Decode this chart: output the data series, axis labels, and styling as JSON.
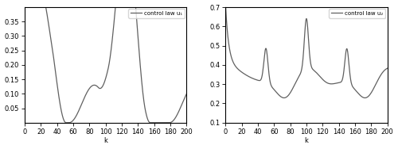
{
  "u1_ylim": [
    0,
    0.4
  ],
  "u2_ylim": [
    0.1,
    0.7
  ],
  "u1_yticks": [
    0.05,
    0.1,
    0.15,
    0.2,
    0.25,
    0.3,
    0.35
  ],
  "u2_yticks": [
    0.1,
    0.2,
    0.3,
    0.4,
    0.5,
    0.6,
    0.7
  ],
  "xticks": [
    0,
    20,
    40,
    60,
    80,
    100,
    120,
    140,
    160,
    180,
    200
  ],
  "xlim": [
    0,
    200
  ],
  "xlabel": "k",
  "u1_legend": "control law u₁",
  "u2_legend": "control law u₂",
  "line_color": "#606060",
  "line_width": 0.9,
  "bg_color": "#ffffff",
  "tick_labelsize": 6,
  "legend_fontsize": 5
}
